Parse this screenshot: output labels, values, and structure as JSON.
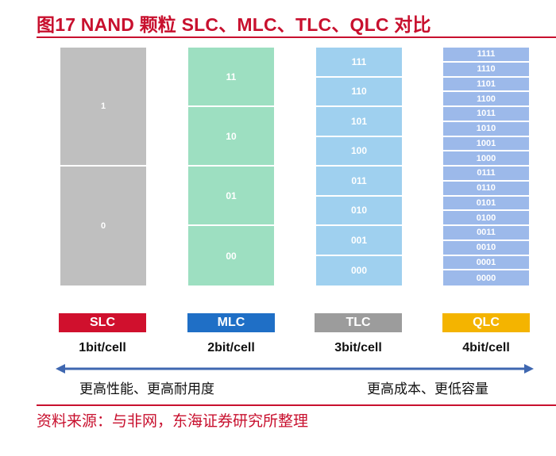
{
  "title": "图17  NAND 颗粒 SLC、MLC、TLC、QLC 对比",
  "columns": [
    {
      "name": "SLC",
      "bits": "1bit/cell",
      "cell_color": "#bfbfbf",
      "badge_color": "#d0102d",
      "states": [
        "1",
        "0"
      ]
    },
    {
      "name": "MLC",
      "bits": "2bit/cell",
      "cell_color": "#9ddfc1",
      "badge_color": "#1f6fc6",
      "states": [
        "11",
        "10",
        "01",
        "00"
      ]
    },
    {
      "name": "TLC",
      "bits": "3bit/cell",
      "cell_color": "#9fd0ef",
      "badge_color": "#9c9c9c",
      "states": [
        "111",
        "110",
        "101",
        "100",
        "011",
        "010",
        "001",
        "000"
      ]
    },
    {
      "name": "QLC",
      "bits": "4bit/cell",
      "cell_color": "#9cb9ea",
      "badge_color": "#f4b400",
      "states": [
        "1111",
        "1110",
        "1101",
        "1100",
        "1011",
        "1010",
        "1001",
        "1000",
        "0111",
        "0110",
        "0101",
        "0100",
        "0011",
        "0010",
        "0001",
        "0000"
      ]
    }
  ],
  "axis": {
    "left_label": "更高性能、更高耐用度",
    "right_label": "更高成本、更低容量",
    "color": "#3f67b0"
  },
  "source": "资料来源：与非网，东海证券研究所整理"
}
